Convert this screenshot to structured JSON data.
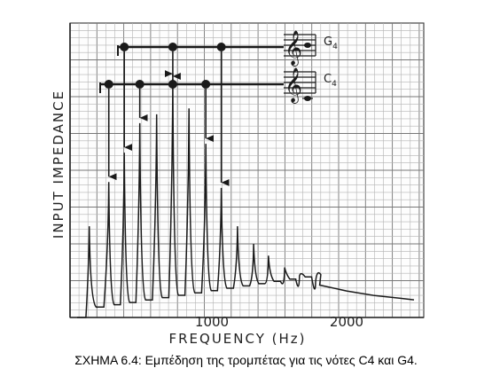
{
  "caption": "ΣΧΗΜΑ 6.4:  Εμπέδηση της τρομπέτας για τις νότες C4 και G4.",
  "chart_data": {
    "type": "line",
    "title": "",
    "xlabel": "FREQUENCY (Hz)",
    "ylabel": "INPUT IMPEDANCE",
    "xlim": [
      0,
      2500
    ],
    "ylim": [
      0,
      1
    ],
    "grid": true,
    "x_ticks": [
      {
        "value": 1000,
        "label": "1000"
      },
      {
        "value": 2000,
        "label": "2000"
      }
    ],
    "resonances": [
      {
        "f": 90,
        "amp": 0.31
      },
      {
        "f": 235,
        "amp": 0.46
      },
      {
        "f": 350,
        "amp": 0.56
      },
      {
        "f": 465,
        "amp": 0.66
      },
      {
        "f": 590,
        "amp": 0.69
      },
      {
        "f": 710,
        "amp": 0.81
      },
      {
        "f": 830,
        "amp": 0.71
      },
      {
        "f": 955,
        "amp": 0.59
      },
      {
        "f": 1070,
        "amp": 0.44
      },
      {
        "f": 1190,
        "amp": 0.31
      },
      {
        "f": 1310,
        "amp": 0.25
      },
      {
        "f": 1420,
        "amp": 0.21
      },
      {
        "f": 1540,
        "amp": 0.17
      },
      {
        "f": 1650,
        "amp": 0.14
      },
      {
        "f": 1770,
        "amp": 0.12
      }
    ],
    "tail": [
      {
        "f": 1800,
        "amp": 0.11
      },
      {
        "f": 2000,
        "amp": 0.09
      },
      {
        "f": 2200,
        "amp": 0.075
      },
      {
        "f": 2400,
        "amp": 0.065
      },
      {
        "f": 2500,
        "amp": 0.06
      }
    ],
    "notes": [
      {
        "label": "G4",
        "label_sub": "4",
        "label_main": "G",
        "harmonic_freqs": [
          350,
          710,
          1070
        ]
      },
      {
        "label": "C4",
        "label_sub": "4",
        "label_main": "C",
        "harmonic_freqs": [
          235,
          465,
          710,
          955
        ]
      }
    ]
  }
}
